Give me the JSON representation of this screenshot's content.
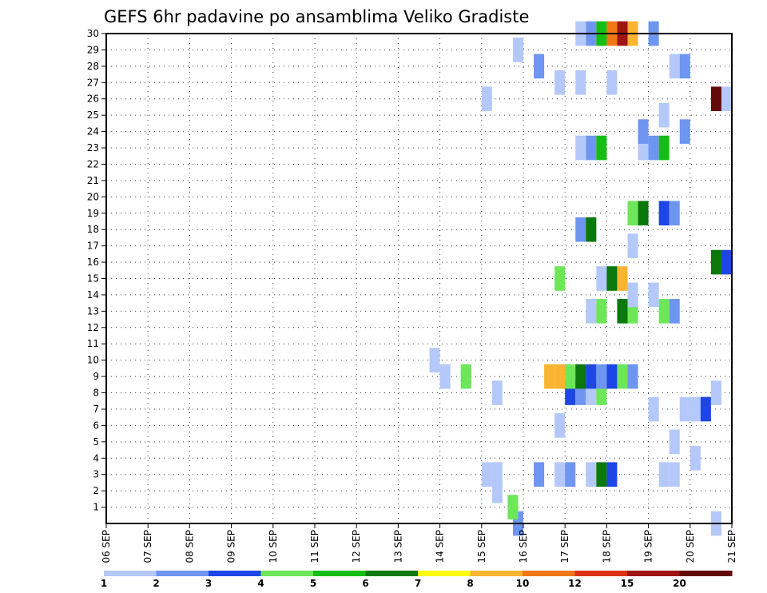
{
  "chart_data": {
    "type": "heatmap",
    "title": "GEFS 6hr padavine po ansamblima Veliko Gradiste",
    "xlabel": "",
    "ylabel": "",
    "x_ticks": [
      "06 SEP",
      "07 SEP",
      "08 SEP",
      "09 SEP",
      "10 SEP",
      "11 SEP",
      "12 SEP",
      "13 SEP",
      "14 SEP",
      "15 SEP",
      "16 SEP",
      "17 SEP",
      "18 SEP",
      "19 SEP",
      "20 SEP",
      "21 SEP"
    ],
    "y_ticks": [
      "1",
      "2",
      "3",
      "4",
      "5",
      "6",
      "7",
      "8",
      "9",
      "10",
      "11",
      "12",
      "13",
      "14",
      "15",
      "16",
      "17",
      "18",
      "19",
      "20",
      "21",
      "22",
      "23",
      "24",
      "25",
      "26",
      "27",
      "28",
      "29",
      "30"
    ],
    "xlim": [
      6,
      21
    ],
    "ylim": [
      0,
      30
    ],
    "grid": true,
    "legend": {
      "placement": "bottom",
      "colors": [
        "#b4c8fa",
        "#6e96f0",
        "#1e46e6",
        "#6ee65a",
        "#14be14",
        "#0a780a",
        "#fafa14",
        "#fab432",
        "#f07814",
        "#dc3214",
        "#a01414",
        "#640a0a"
      ],
      "labels": [
        "1",
        "2",
        "3",
        "4",
        "5",
        "6",
        "7",
        "8",
        "10",
        "12",
        "15",
        "20"
      ]
    },
    "cells": [
      {
        "t": 15.875,
        "m": 0,
        "v": 2
      },
      {
        "t": 20.625,
        "m": 0,
        "v": 1
      },
      {
        "t": 15.75,
        "m": 1,
        "v": 4
      },
      {
        "t": 15.375,
        "m": 2,
        "v": 1
      },
      {
        "t": 15.125,
        "m": 3,
        "v": 1
      },
      {
        "t": 15.375,
        "m": 3,
        "v": 1
      },
      {
        "t": 16.375,
        "m": 3,
        "v": 2
      },
      {
        "t": 16.875,
        "m": 3,
        "v": 1
      },
      {
        "t": 17.125,
        "m": 3,
        "v": 2
      },
      {
        "t": 17.625,
        "m": 3,
        "v": 1
      },
      {
        "t": 17.875,
        "m": 3,
        "v": 6
      },
      {
        "t": 18.125,
        "m": 3,
        "v": 3
      },
      {
        "t": 19.375,
        "m": 3,
        "v": 1
      },
      {
        "t": 19.625,
        "m": 3,
        "v": 1
      },
      {
        "t": 20.125,
        "m": 4,
        "v": 1
      },
      {
        "t": 19.625,
        "m": 5,
        "v": 1
      },
      {
        "t": 16.875,
        "m": 6,
        "v": 1
      },
      {
        "t": 19.125,
        "m": 7,
        "v": 1
      },
      {
        "t": 19.875,
        "m": 7,
        "v": 1
      },
      {
        "t": 20.125,
        "m": 7,
        "v": 1
      },
      {
        "t": 20.375,
        "m": 7,
        "v": 3
      },
      {
        "t": 15.375,
        "m": 8,
        "v": 1
      },
      {
        "t": 17.125,
        "m": 8,
        "v": 3
      },
      {
        "t": 17.375,
        "m": 8,
        "v": 2
      },
      {
        "t": 17.625,
        "m": 8,
        "v": 1
      },
      {
        "t": 17.875,
        "m": 8,
        "v": 4
      },
      {
        "t": 20.625,
        "m": 8,
        "v": 1
      },
      {
        "t": 14.125,
        "m": 9,
        "v": 1
      },
      {
        "t": 14.625,
        "m": 9,
        "v": 4
      },
      {
        "t": 16.625,
        "m": 9,
        "v": 8
      },
      {
        "t": 16.875,
        "m": 9,
        "v": 8
      },
      {
        "t": 17.125,
        "m": 9,
        "v": 4
      },
      {
        "t": 17.375,
        "m": 9,
        "v": 6
      },
      {
        "t": 17.625,
        "m": 9,
        "v": 3
      },
      {
        "t": 17.875,
        "m": 9,
        "v": 2
      },
      {
        "t": 18.125,
        "m": 9,
        "v": 3
      },
      {
        "t": 18.375,
        "m": 9,
        "v": 4
      },
      {
        "t": 18.625,
        "m": 9,
        "v": 2
      },
      {
        "t": 13.875,
        "m": 10,
        "v": 1
      },
      {
        "t": 17.625,
        "m": 13,
        "v": 1
      },
      {
        "t": 17.875,
        "m": 13,
        "v": 4
      },
      {
        "t": 18.375,
        "m": 13,
        "v": 6
      },
      {
        "t": 18.625,
        "m": 13,
        "v": 4
      },
      {
        "t": 19.375,
        "m": 13,
        "v": 4
      },
      {
        "t": 19.625,
        "m": 13,
        "v": 2
      },
      {
        "t": 18.625,
        "m": 14,
        "v": 1
      },
      {
        "t": 19.125,
        "m": 14,
        "v": 1
      },
      {
        "t": 16.875,
        "m": 15,
        "v": 4
      },
      {
        "t": 17.875,
        "m": 15,
        "v": 1
      },
      {
        "t": 18.125,
        "m": 15,
        "v": 6
      },
      {
        "t": 18.375,
        "m": 15,
        "v": 8
      },
      {
        "t": 20.625,
        "m": 16,
        "v": 6
      },
      {
        "t": 20.875,
        "m": 16,
        "v": 3
      },
      {
        "t": 18.625,
        "m": 17,
        "v": 1
      },
      {
        "t": 17.375,
        "m": 18,
        "v": 2
      },
      {
        "t": 17.625,
        "m": 18,
        "v": 6
      },
      {
        "t": 18.625,
        "m": 19,
        "v": 4
      },
      {
        "t": 18.875,
        "m": 19,
        "v": 6
      },
      {
        "t": 19.375,
        "m": 19,
        "v": 3
      },
      {
        "t": 19.625,
        "m": 19,
        "v": 2
      },
      {
        "t": 17.375,
        "m": 23,
        "v": 1
      },
      {
        "t": 17.625,
        "m": 23,
        "v": 2
      },
      {
        "t": 17.875,
        "m": 23,
        "v": 5
      },
      {
        "t": 18.875,
        "m": 23,
        "v": 1
      },
      {
        "t": 19.125,
        "m": 23,
        "v": 2
      },
      {
        "t": 19.375,
        "m": 23,
        "v": 5
      },
      {
        "t": 18.875,
        "m": 24,
        "v": 2
      },
      {
        "t": 19.875,
        "m": 24,
        "v": 2
      },
      {
        "t": 19.375,
        "m": 25,
        "v": 1
      },
      {
        "t": 15.125,
        "m": 26,
        "v": 1
      },
      {
        "t": 20.625,
        "m": 26,
        "v": 20
      },
      {
        "t": 20.875,
        "m": 26,
        "v": 1
      },
      {
        "t": 16.875,
        "m": 27,
        "v": 1
      },
      {
        "t": 17.375,
        "m": 27,
        "v": 1
      },
      {
        "t": 18.125,
        "m": 27,
        "v": 1
      },
      {
        "t": 16.375,
        "m": 28,
        "v": 2
      },
      {
        "t": 19.625,
        "m": 28,
        "v": 1
      },
      {
        "t": 19.875,
        "m": 28,
        "v": 2
      },
      {
        "t": 15.875,
        "m": 29,
        "v": 1
      },
      {
        "t": 17.375,
        "m": 30,
        "v": 1
      },
      {
        "t": 17.625,
        "m": 30,
        "v": 2
      },
      {
        "t": 17.875,
        "m": 30,
        "v": 5
      },
      {
        "t": 18.125,
        "m": 30,
        "v": 10
      },
      {
        "t": 18.375,
        "m": 30,
        "v": 15
      },
      {
        "t": 18.625,
        "m": 30,
        "v": 8
      },
      {
        "t": 19.125,
        "m": 30,
        "v": 2
      }
    ]
  }
}
